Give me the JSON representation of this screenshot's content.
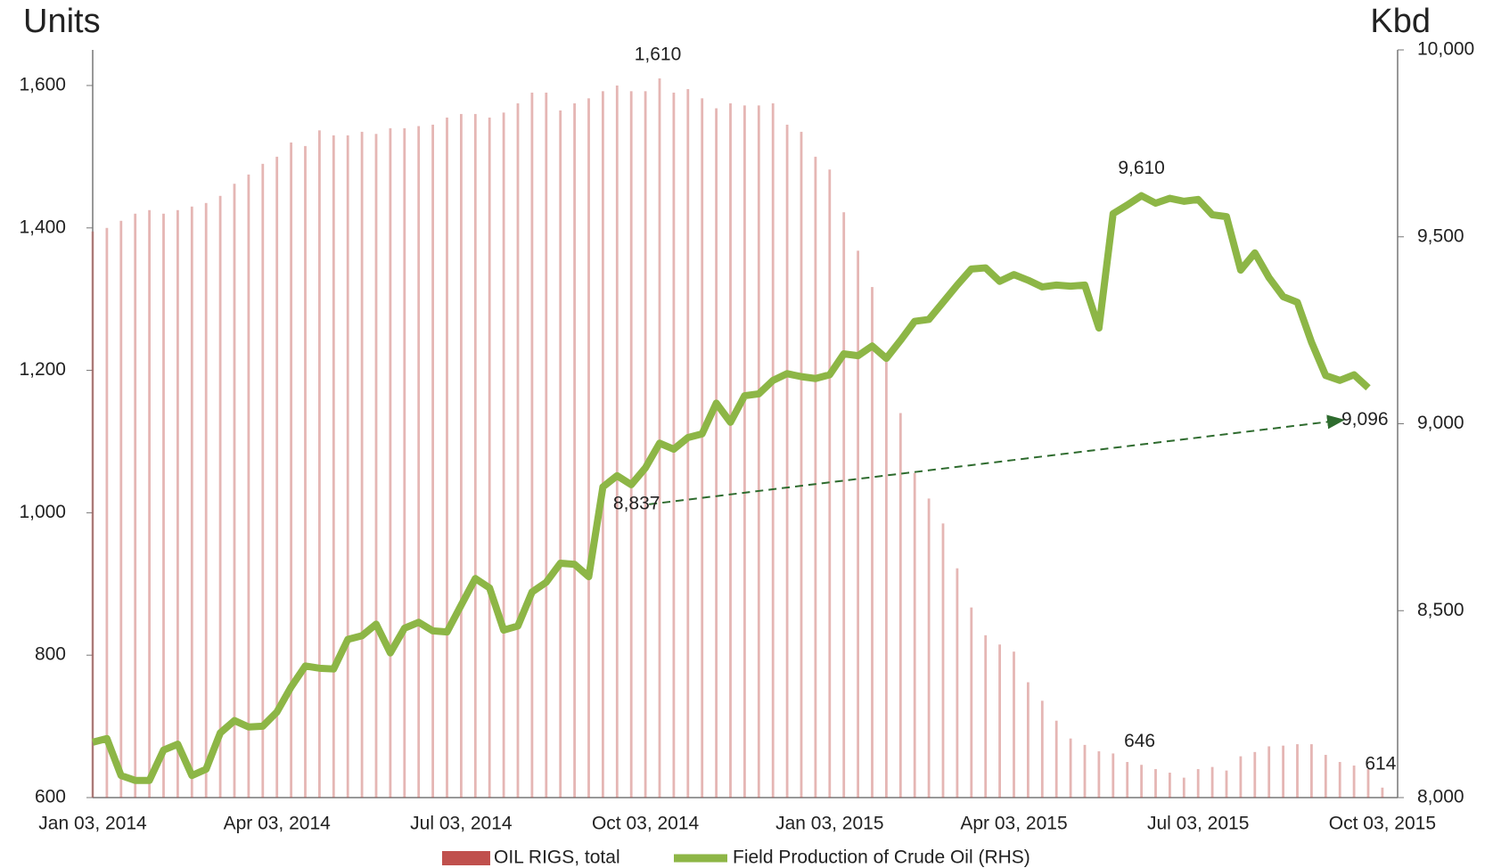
{
  "chart_data": {
    "type": "bar_line",
    "y_title": "Units",
    "y2_title": "Kbd",
    "categories": [
      "Jan 03, 2014",
      null,
      null,
      null,
      null,
      null,
      null,
      null,
      null,
      null,
      null,
      null,
      null,
      "Apr 03, 2014",
      null,
      null,
      null,
      null,
      null,
      null,
      null,
      null,
      null,
      null,
      null,
      null,
      "Jul 03, 2014",
      null,
      null,
      null,
      null,
      null,
      null,
      null,
      null,
      null,
      null,
      null,
      null,
      "Oct 03, 2014",
      null,
      null,
      null,
      null,
      null,
      null,
      null,
      null,
      null,
      null,
      null,
      null,
      "Jan 03, 2015",
      null,
      null,
      null,
      null,
      null,
      null,
      null,
      null,
      null,
      null,
      null,
      null,
      "Apr 03, 2015",
      null,
      null,
      null,
      null,
      null,
      null,
      null,
      null,
      null,
      null,
      null,
      null,
      "Jul 03, 2015",
      null,
      null,
      null,
      null,
      null,
      null,
      null,
      null,
      null,
      null,
      null,
      null,
      "Oct 03, 2015"
    ],
    "series": [
      {
        "name": "OIL RIGS, total",
        "type": "bar",
        "color": "#c0504d",
        "values": [
          1395,
          1400,
          1410,
          1420,
          1425,
          1420,
          1425,
          1430,
          1435,
          1445,
          1462,
          1475,
          1490,
          1500,
          1520,
          1515,
          1537,
          1530,
          1530,
          1535,
          1532,
          1540,
          1540,
          1543,
          1545,
          1555,
          1560,
          1560,
          1555,
          1562,
          1575,
          1590,
          1590,
          1565,
          1575,
          1582,
          1592,
          1600,
          1592,
          1592,
          1610,
          1590,
          1595,
          1582,
          1568,
          1575,
          1572,
          1572,
          1575,
          1545,
          1535,
          1500,
          1482,
          1422,
          1368,
          1317,
          1223,
          1140,
          1056,
          1020,
          985,
          922,
          867,
          828,
          815,
          805,
          762,
          736,
          708,
          683,
          674,
          665,
          662,
          650,
          646,
          640,
          635,
          628,
          640,
          643,
          638,
          658,
          664,
          672,
          673,
          675,
          675,
          660,
          650,
          645,
          640,
          614
        ],
        "value_labels": [
          null,
          null,
          null,
          null,
          null,
          null,
          null,
          null,
          null,
          null,
          null,
          null,
          null,
          null,
          null,
          null,
          null,
          null,
          null,
          null,
          null,
          null,
          null,
          null,
          null,
          null,
          null,
          null,
          null,
          null,
          null,
          null,
          null,
          null,
          null,
          null,
          null,
          null,
          null,
          null,
          "1,610",
          null,
          null,
          null,
          null,
          null,
          null,
          null,
          null,
          null,
          null,
          null,
          null,
          null,
          null,
          null,
          null,
          null,
          null,
          null,
          null,
          null,
          null,
          null,
          null,
          null,
          null,
          null,
          null,
          null,
          null,
          null,
          null,
          null,
          "646",
          null,
          null,
          null,
          null,
          null,
          null,
          null,
          null,
          null,
          null,
          null,
          null,
          null,
          null,
          null,
          null,
          "614"
        ]
      },
      {
        "name": "Field Production of Crude Oil (RHS)",
        "type": "line",
        "axis": "y2",
        "color": "#8db646",
        "values": [
          8148,
          8158,
          8059,
          8046,
          8046,
          8127,
          8143,
          8059,
          8076,
          8173,
          8206,
          8189,
          8191,
          8229,
          8296,
          8352,
          8346,
          8344,
          8423,
          8433,
          8464,
          8387,
          8453,
          8469,
          8446,
          8443,
          8515,
          8586,
          8561,
          8448,
          8459,
          8550,
          8576,
          8627,
          8624,
          8591,
          8831,
          8861,
          8837,
          8882,
          8948,
          8932,
          8963,
          8973,
          9055,
          9004,
          9075,
          9080,
          9116,
          9134,
          9126,
          9121,
          9131,
          9187,
          9182,
          9208,
          9175,
          9223,
          9274,
          9279,
          9325,
          9371,
          9414,
          9417,
          9381,
          9399,
          9384,
          9366,
          9371,
          9368,
          9371,
          9256,
          9562,
          9585,
          9610,
          9590,
          9603,
          9595,
          9600,
          9559,
          9554,
          9411,
          9457,
          9391,
          9340,
          9325,
          9218,
          9129,
          9116,
          9131,
          9096,
          null
        ],
        "value_labels": [
          null,
          null,
          null,
          null,
          null,
          null,
          null,
          null,
          null,
          null,
          null,
          null,
          null,
          null,
          null,
          null,
          null,
          null,
          null,
          null,
          null,
          null,
          null,
          null,
          null,
          null,
          null,
          null,
          null,
          null,
          null,
          null,
          null,
          null,
          null,
          null,
          null,
          null,
          "8,837",
          null,
          null,
          null,
          null,
          null,
          null,
          null,
          null,
          null,
          null,
          null,
          null,
          null,
          null,
          null,
          null,
          null,
          null,
          null,
          null,
          null,
          null,
          null,
          null,
          null,
          null,
          null,
          null,
          null,
          null,
          null,
          null,
          null,
          null,
          null,
          "9,610",
          null,
          null,
          null,
          null,
          null,
          null,
          null,
          null,
          null,
          null,
          null,
          null,
          null,
          null,
          null,
          "9,096",
          null
        ]
      }
    ],
    "ylim": [
      600,
      1650
    ],
    "yticks": [
      600,
      800,
      {
        "value": 1000,
        "label": "1,000"
      },
      {
        "value": 1200,
        "label": "1,200"
      },
      {
        "value": 1400,
        "label": "1,400"
      },
      {
        "value": 1600,
        "label": "1,600"
      }
    ],
    "y2lim": [
      8000,
      10000
    ],
    "y2ticks": [
      {
        "value": 8000,
        "label": "8,000"
      },
      {
        "value": 8500,
        "label": "8,500"
      },
      {
        "value": 9000,
        "label": "9,000"
      },
      {
        "value": 9500,
        "label": "9,500"
      },
      {
        "value": 10000,
        "label": "10,000"
      }
    ],
    "legend": "bottom"
  }
}
